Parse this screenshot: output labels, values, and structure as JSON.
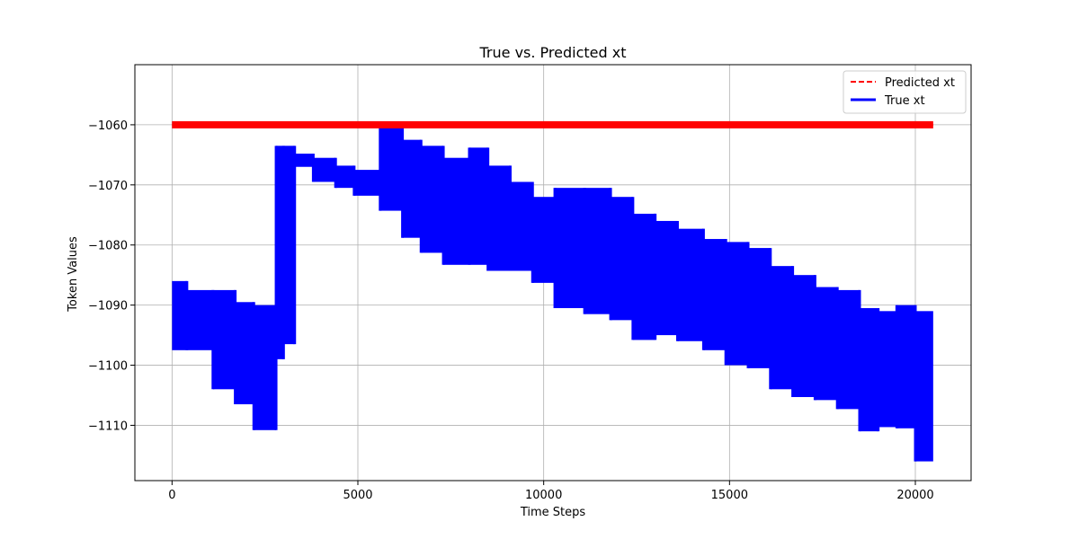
{
  "chart_data": {
    "type": "line",
    "title": "True vs. Predicted xt",
    "xlabel": "Time Steps",
    "ylabel": "Token Values",
    "xlim": [
      -1000,
      21500
    ],
    "ylim": [
      -1119.2,
      -1050.0
    ],
    "x_ticks": [
      0,
      5000,
      10000,
      15000,
      20000
    ],
    "x_tick_labels": [
      "0",
      "5000",
      "10000",
      "15000",
      "20000"
    ],
    "y_ticks": [
      -1110,
      -1100,
      -1090,
      -1080,
      -1070,
      -1060
    ],
    "y_tick_labels": [
      "−1110",
      "−1100",
      "−1090",
      "−1080",
      "−1070",
      "−1060"
    ],
    "grid": true,
    "legend_position": "top-right",
    "series": [
      {
        "name": "Predicted xt",
        "color": "#ff0000",
        "style": "dashed",
        "x": [
          0,
          20480
        ],
        "y": [
          -1060,
          -1060
        ],
        "band": [
          -1060.6,
          -1059.4
        ]
      },
      {
        "name": "True xt",
        "color": "#0000ff",
        "style": "solid",
        "segments": [
          {
            "x0": 0,
            "x1": 400,
            "ymin": -1097.5,
            "ymax": -1086.0
          },
          {
            "x0": 400,
            "x1": 1100,
            "ymin": -1097.5,
            "ymax": -1087.5
          },
          {
            "x0": 1100,
            "x1": 1700,
            "ymin": -1104.0,
            "ymax": -1087.5
          },
          {
            "x0": 1700,
            "x1": 2200,
            "ymin": -1106.5,
            "ymax": -1089.5
          },
          {
            "x0": 2200,
            "x1": 2800,
            "ymin": -1110.8,
            "ymax": -1090.0
          },
          {
            "x0": 2800,
            "x1": 3000,
            "ymin": -1099.0,
            "ymax": -1063.5
          },
          {
            "x0": 3000,
            "x1": 3300,
            "ymin": -1096.5,
            "ymax": -1063.5
          },
          {
            "x0": 3300,
            "x1": 3800,
            "ymin": -1067.0,
            "ymax": -1064.8
          },
          {
            "x0": 3800,
            "x1": 4400,
            "ymin": -1069.5,
            "ymax": -1065.5
          },
          {
            "x0": 4400,
            "x1": 4900,
            "ymin": -1070.5,
            "ymax": -1066.8
          },
          {
            "x0": 4900,
            "x1": 5600,
            "ymin": -1071.8,
            "ymax": -1067.5
          },
          {
            "x0": 5600,
            "x1": 6200,
            "ymin": -1074.3,
            "ymax": -1059.5
          },
          {
            "x0": 6200,
            "x1": 6700,
            "ymin": -1078.8,
            "ymax": -1062.5
          },
          {
            "x0": 6700,
            "x1": 7300,
            "ymin": -1081.3,
            "ymax": -1063.5
          },
          {
            "x0": 7300,
            "x1": 8000,
            "ymin": -1083.3,
            "ymax": -1065.5
          },
          {
            "x0": 8000,
            "x1": 8500,
            "ymin": -1083.3,
            "ymax": -1063.8
          },
          {
            "x0": 8500,
            "x1": 9100,
            "ymin": -1084.3,
            "ymax": -1066.8
          },
          {
            "x0": 9100,
            "x1": 9700,
            "ymin": -1084.3,
            "ymax": -1069.5
          },
          {
            "x0": 9700,
            "x1": 10300,
            "ymin": -1086.3,
            "ymax": -1072.0
          },
          {
            "x0": 10300,
            "x1": 11100,
            "ymin": -1090.5,
            "ymax": -1070.5
          },
          {
            "x0": 11100,
            "x1": 11800,
            "ymin": -1091.5,
            "ymax": -1070.5
          },
          {
            "x0": 11800,
            "x1": 12400,
            "ymin": -1092.5,
            "ymax": -1072.0
          },
          {
            "x0": 12400,
            "x1": 13000,
            "ymin": -1095.8,
            "ymax": -1074.8
          },
          {
            "x0": 13000,
            "x1": 13600,
            "ymin": -1095.0,
            "ymax": -1076.0
          },
          {
            "x0": 13600,
            "x1": 14300,
            "ymin": -1096.0,
            "ymax": -1077.3
          },
          {
            "x0": 14300,
            "x1": 14900,
            "ymin": -1097.5,
            "ymax": -1079.0
          },
          {
            "x0": 14900,
            "x1": 15500,
            "ymin": -1100.0,
            "ymax": -1079.5
          },
          {
            "x0": 15500,
            "x1": 16100,
            "ymin": -1100.5,
            "ymax": -1080.5
          },
          {
            "x0": 16100,
            "x1": 16700,
            "ymin": -1104.0,
            "ymax": -1083.5
          },
          {
            "x0": 16700,
            "x1": 17300,
            "ymin": -1105.3,
            "ymax": -1085.0
          },
          {
            "x0": 17300,
            "x1": 17900,
            "ymin": -1105.8,
            "ymax": -1087.0
          },
          {
            "x0": 17900,
            "x1": 18500,
            "ymin": -1107.3,
            "ymax": -1087.5
          },
          {
            "x0": 18500,
            "x1": 19000,
            "ymin": -1111.0,
            "ymax": -1090.5
          },
          {
            "x0": 19000,
            "x1": 19500,
            "ymin": -1110.3,
            "ymax": -1091.0
          },
          {
            "x0": 19500,
            "x1": 20000,
            "ymin": -1110.5,
            "ymax": -1090.0
          },
          {
            "x0": 20000,
            "x1": 20480,
            "ymin": -1116.0,
            "ymax": -1091.0
          }
        ]
      }
    ]
  }
}
